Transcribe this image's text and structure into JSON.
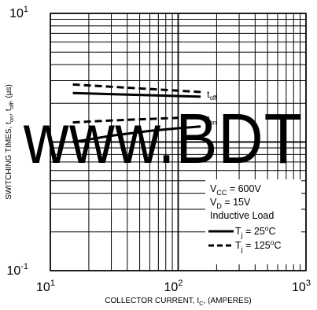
{
  "chart_data": {
    "type": "line",
    "x_scale": "log",
    "y_scale": "log",
    "xlim": [
      10,
      1000
    ],
    "ylim": [
      0.1,
      10
    ],
    "grid": true,
    "x_ticks": [
      {
        "value": 10,
        "base": "10",
        "exp": "1"
      },
      {
        "value": 100,
        "base": "10",
        "exp": "2"
      },
      {
        "value": 1000,
        "base": "10",
        "exp": "3"
      }
    ],
    "y_ticks": [
      {
        "value": 10,
        "base": "10",
        "exp": "1"
      },
      {
        "value": 0.1,
        "base": "10",
        "exp": "-1"
      }
    ],
    "xlabel": {
      "main": "COLLECTOR CURRENT, I",
      "sub": "C",
      "tail": ", (AMPERES)"
    },
    "ylabel": {
      "p1": "SWITCHING TIMES, t",
      "s1": "on",
      "p2": ", t",
      "s2": "off",
      "p3": ", (µs)"
    },
    "series": [
      {
        "curve": "t_off",
        "style": "solid",
        "x": [
          15,
          150
        ],
        "y": [
          2.4,
          2.25
        ]
      },
      {
        "curve": "t_off",
        "style": "dashed",
        "x": [
          15,
          150
        ],
        "y": [
          2.8,
          2.45
        ]
      },
      {
        "curve": "t_on",
        "style": "solid",
        "x": [
          15,
          30,
          60,
          100,
          150
        ],
        "y": [
          1.0,
          1.12,
          1.22,
          1.28,
          1.32
        ]
      },
      {
        "curve": "t_on",
        "style": "dashed",
        "x": [
          15,
          30,
          60,
          100,
          150
        ],
        "y": [
          1.42,
          1.47,
          1.51,
          1.54,
          1.57
        ]
      }
    ],
    "curve_labels": [
      {
        "main": "t",
        "sub": "off",
        "x": 150,
        "y": 2.35
      },
      {
        "main": "t",
        "sub": "on",
        "x": 150,
        "y": 1.5
      }
    ],
    "legend": {
      "position": "bottom-right",
      "conditions": [
        {
          "main": "V",
          "sub": "CC",
          "tail": " = 600V"
        },
        {
          "main": "V",
          "sub": "D",
          "tail": " = 15V"
        },
        {
          "main": "Inductive Load",
          "sub": "",
          "tail": ""
        }
      ],
      "entries": [
        {
          "style": "solid",
          "main": "T",
          "sub": "j",
          "value": " = 25",
          "sup": "o",
          "unit": "C"
        },
        {
          "style": "dashed",
          "main": "T",
          "sub": "j",
          "value": " = 125",
          "sup": "o",
          "unit": "C"
        }
      ]
    }
  },
  "watermark": {
    "text": "www.BDT",
    "color": "#0000ff"
  },
  "colors": {
    "line": "#000000",
    "grid": "#000000",
    "background": "#ffffff"
  }
}
